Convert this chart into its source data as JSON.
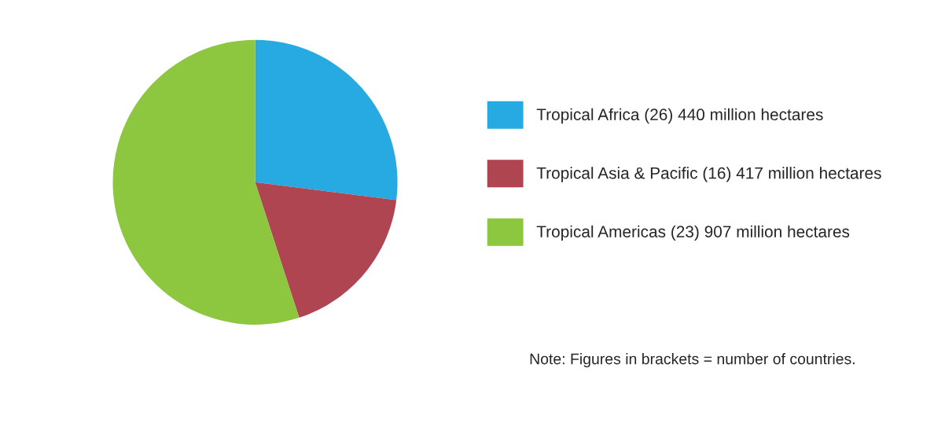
{
  "chart_data": {
    "type": "pie",
    "categories": [
      "Tropical Africa (26) 440 million hectares",
      "Tropical Asia & Pacific (16) 417 million hectares",
      "Tropical Americas (23) 907 million hectares"
    ],
    "values": [
      27,
      18,
      55
    ],
    "colors": [
      "#27aae1",
      "#b04552",
      "#8dc63f"
    ],
    "legend": "right",
    "annotations": [
      "Note: Figures in brackets = number of countries."
    ]
  }
}
